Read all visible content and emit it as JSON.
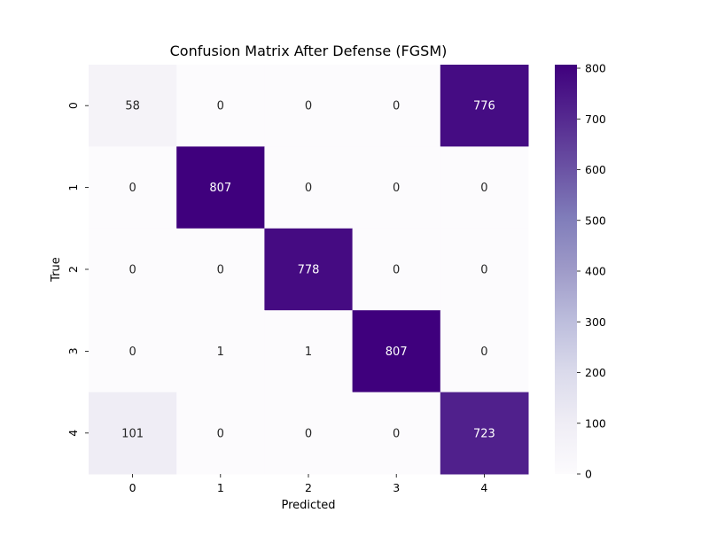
{
  "chart_data": {
    "type": "heatmap",
    "title": "Confusion Matrix After Defense (FGSM)",
    "xlabel": "Predicted",
    "ylabel": "True",
    "x_categories": [
      "0",
      "1",
      "2",
      "3",
      "4"
    ],
    "y_categories": [
      "0",
      "1",
      "2",
      "3",
      "4"
    ],
    "values": [
      [
        58,
        0,
        0,
        0,
        776
      ],
      [
        0,
        807,
        0,
        0,
        0
      ],
      [
        0,
        0,
        778,
        0,
        0
      ],
      [
        0,
        1,
        1,
        807,
        0
      ],
      [
        101,
        0,
        0,
        0,
        723
      ]
    ],
    "colormap": "Purples",
    "colorbar": {
      "min": 0,
      "max": 807,
      "ticks": [
        0,
        100,
        200,
        300,
        400,
        500,
        600,
        700,
        800
      ]
    },
    "grid": false,
    "legend": "colorbar right"
  }
}
